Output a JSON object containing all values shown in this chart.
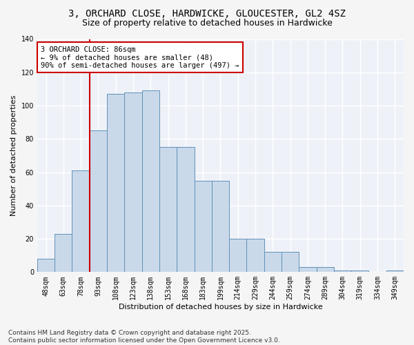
{
  "title_line1": "3, ORCHARD CLOSE, HARDWICKE, GLOUCESTER, GL2 4SZ",
  "title_line2": "Size of property relative to detached houses in Hardwicke",
  "xlabel": "Distribution of detached houses by size in Hardwicke",
  "ylabel": "Number of detached properties",
  "bar_color": "#c9d9ea",
  "bar_edge_color": "#6090b8",
  "bg_color": "#eef2f8",
  "grid_color": "#ffffff",
  "categories": [
    "48sqm",
    "63sqm",
    "78sqm",
    "93sqm",
    "108sqm",
    "123sqm",
    "138sqm",
    "153sqm",
    "168sqm",
    "183sqm",
    "199sqm",
    "214sqm",
    "229sqm",
    "244sqm",
    "259sqm",
    "274sqm",
    "289sqm",
    "304sqm",
    "319sqm",
    "334sqm",
    "349sqm"
  ],
  "bar_heights": [
    8,
    23,
    61,
    85,
    107,
    108,
    109,
    75,
    75,
    55,
    55,
    20,
    20,
    12,
    12,
    3,
    3,
    1,
    1,
    0,
    1
  ],
  "vline_bin_index": 2.5,
  "vline_color": "#cc0000",
  "annotation_text": "3 ORCHARD CLOSE: 86sqm\n← 9% of detached houses are smaller (48)\n90% of semi-detached houses are larger (497) →",
  "annotation_box_color": "#ffffff",
  "annotation_box_edge": "#cc0000",
  "ylim": [
    0,
    140
  ],
  "yticks": [
    0,
    20,
    40,
    60,
    80,
    100,
    120,
    140
  ],
  "footer": "Contains HM Land Registry data © Crown copyright and database right 2025.\nContains public sector information licensed under the Open Government Licence v3.0.",
  "title_fontsize": 10,
  "subtitle_fontsize": 9,
  "axis_label_fontsize": 8,
  "tick_fontsize": 7,
  "footer_fontsize": 6.5,
  "annot_fontsize": 7.5
}
